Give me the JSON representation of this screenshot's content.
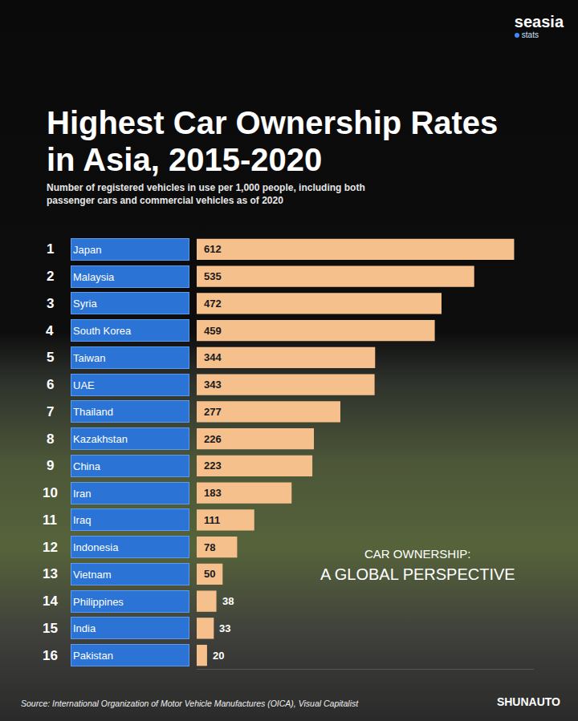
{
  "chart_data": {
    "type": "bar",
    "orientation": "horizontal",
    "title": "Highest Car Ownership Rates in Asia, 2015-2020",
    "subtitle": "Number of registered vehicles in use per 1,000 people, including both passenger cars and commercial vehicles as of 2020",
    "ranks": [
      1,
      2,
      3,
      4,
      5,
      6,
      7,
      8,
      9,
      10,
      11,
      12,
      13,
      14,
      15,
      16
    ],
    "categories": [
      "Japan",
      "Malaysia",
      "Syria",
      "South Korea",
      "Taiwan",
      "UAE",
      "Thailand",
      "Kazakhstan",
      "China",
      "Iran",
      "Iraq",
      "Indonesia",
      "Vietnam",
      "Philippines",
      "India",
      "Pakistan"
    ],
    "values": [
      612,
      535,
      472,
      459,
      344,
      343,
      277,
      226,
      223,
      183,
      111,
      78,
      50,
      38,
      33,
      20
    ],
    "color": "#f6c08c",
    "data_labels": true,
    "tick_labels": false,
    "xlim": [
      0,
      650
    ],
    "xticks": [],
    "annotations": [
      "CAR OWNERSHIP:",
      "A GLOBAL PERSPECTIVE"
    ],
    "source": "Source: International Organization of Motor Vehicle Manufactures (OICA), Visual Capitalist",
    "brand": "SHUNAUTO",
    "logo": {
      "name": "seasia",
      "tag": "stats"
    }
  }
}
